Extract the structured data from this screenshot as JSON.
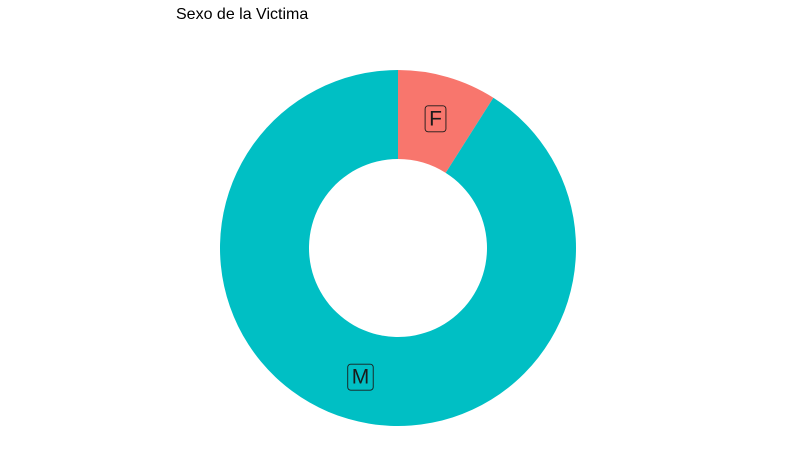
{
  "chart_data": {
    "type": "pie",
    "title": "Sexo de la Victima",
    "categories": [
      "F",
      "M"
    ],
    "values": [
      9,
      91
    ],
    "colors": [
      "#F8766D",
      "#00BFC4"
    ],
    "donut": true,
    "legend": "none"
  }
}
